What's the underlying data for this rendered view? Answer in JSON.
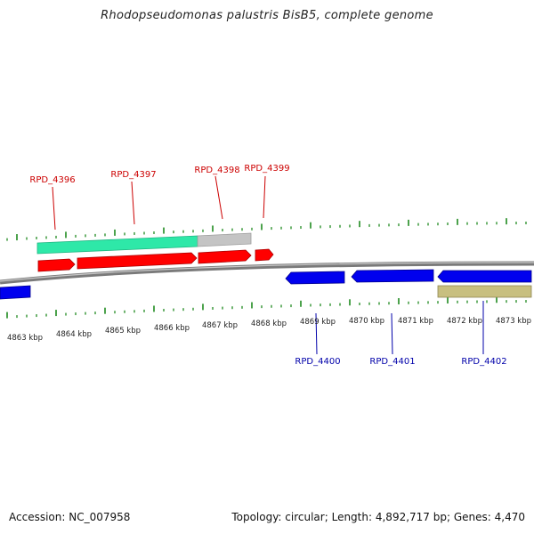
{
  "title": "Rhodopseudomonas palustris BisB5, complete genome",
  "footer": {
    "accession_label": "Accession:",
    "accession": "NC_007958",
    "topology_label": "Topology:",
    "topology": "circular",
    "length_label": "Length:",
    "length": "4,892,717 bp",
    "genes_label": "Genes:",
    "genes": "4,470"
  },
  "colors": {
    "forward_cds": "#ff0000",
    "reverse_cds": "#0000ee",
    "forward_label": "#cc0000",
    "reverse_label": "#0000aa",
    "tick": "#1f8a1f",
    "backbone": "#8c8c8c",
    "feature_green": "#2ee8a8",
    "feature_gray": "#c4c4c4",
    "feature_khaki": "#c8bf80"
  },
  "kbp_labels": [
    "4863 kbp",
    "4864 kbp",
    "4865 kbp",
    "4866 kbp",
    "4867 kbp",
    "4868 kbp",
    "4869 kbp",
    "4870 kbp",
    "4871 kbp",
    "4872 kbp",
    "4873 kbp"
  ],
  "forward_genes": [
    "RPD_4396",
    "RPD_4397",
    "RPD_4398",
    "RPD_4399"
  ],
  "reverse_genes": [
    "RPD_4400",
    "RPD_4401",
    "RPD_4402"
  ]
}
